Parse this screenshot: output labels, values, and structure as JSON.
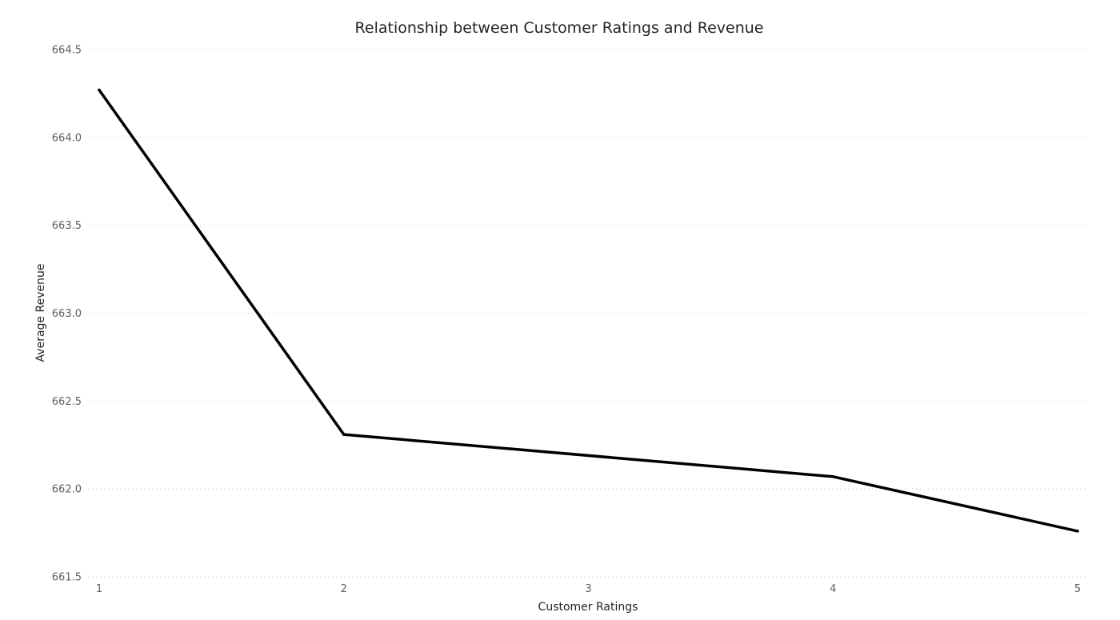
{
  "chart_data": {
    "type": "line",
    "title": "Relationship between Customer Ratings and Revenue",
    "xlabel": "Customer Ratings",
    "ylabel": "Average Revenue",
    "x": [
      1,
      2,
      4,
      5
    ],
    "x_ticks": [
      "1",
      "2",
      "3",
      "4",
      "5"
    ],
    "xlim": [
      1,
      5
    ],
    "y_ticks": [
      "664.5",
      "664.0",
      "663.5",
      "663.0",
      "662.5",
      "662.0",
      "661.5"
    ],
    "ylim": [
      661.5,
      664.5
    ],
    "series": [
      {
        "values": [
          664.27,
          662.31,
          662.07,
          661.76
        ],
        "color": "#000000"
      }
    ],
    "grid": true,
    "grid_style": "dotted horizontal",
    "legend": "none"
  }
}
